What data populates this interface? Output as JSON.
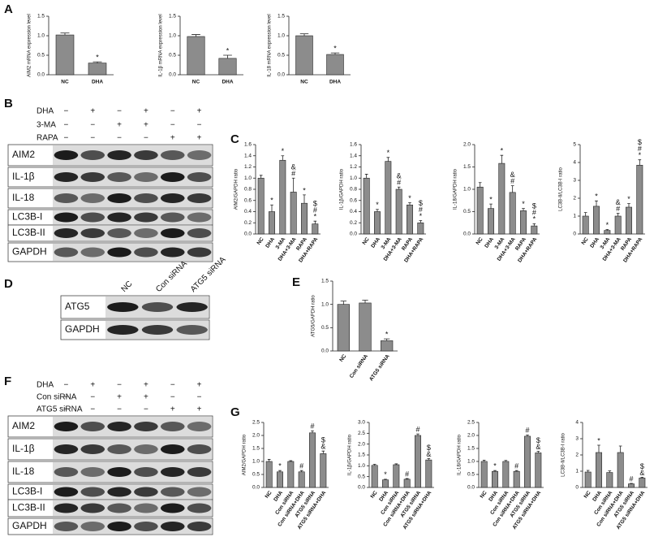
{
  "panel_labels": [
    "A",
    "B",
    "C",
    "D",
    "E",
    "F",
    "G"
  ],
  "blots": [
    {
      "conditions": [
        {
          "name": "DHA",
          "signs": [
            "−",
            "+",
            "−",
            "+",
            "−",
            "+"
          ]
        },
        {
          "name": "3-MA",
          "signs": [
            "−",
            "−",
            "+",
            "+",
            "−",
            "−"
          ]
        },
        {
          "name": "RAPA",
          "signs": [
            "−",
            "−",
            "−",
            "−",
            "+",
            "+"
          ]
        }
      ],
      "bands": [
        "AIM2",
        "IL-1β",
        "IL-18",
        "LC3B-I",
        "LC3B-II",
        "GAPDH"
      ]
    },
    {
      "lanes": [
        "NC",
        "Con siRNA",
        "ATG5 siRNA"
      ],
      "bands": [
        "ATG5",
        "GAPDH"
      ]
    },
    {
      "conditions": [
        {
          "name": "DHA",
          "signs": [
            "−",
            "+",
            "−",
            "+",
            "−",
            "+"
          ]
        },
        {
          "name": "Con siRNA",
          "signs": [
            "−",
            "−",
            "+",
            "+",
            "−",
            "−"
          ]
        },
        {
          "name": "ATG5 siRNA",
          "signs": [
            "−",
            "−",
            "−",
            "−",
            "+",
            "+"
          ]
        }
      ],
      "bands": [
        "AIM2",
        "IL-1β",
        "IL-18",
        "LC3B-I",
        "LC3B-II",
        "GAPDH"
      ]
    }
  ],
  "chart_data": [
    {
      "type": "bar",
      "y_label": "AIM2 mRNA expression level",
      "categories": [
        "NC",
        "DHA"
      ],
      "values": [
        1.02,
        0.3
      ],
      "errors": [
        0.05,
        0.03
      ],
      "annotations": [
        null,
        [
          "*"
        ]
      ],
      "color": "#8c8c8c",
      "ylim": [
        0,
        1.5
      ],
      "yticks": [
        {
          "value": 0,
          "label": "0.0"
        },
        0.5,
        {
          "value": 1,
          "label": "1.0"
        },
        1.5
      ]
    },
    {
      "type": "bar",
      "y_label": "IL-1β mRNA expression level",
      "categories": [
        "NC",
        "DHA"
      ],
      "values": [
        0.98,
        0.42
      ],
      "errors": [
        0.05,
        0.08
      ],
      "annotations": [
        null,
        [
          "*"
        ]
      ],
      "color": "#8c8c8c",
      "ylim": [
        0,
        1.5
      ],
      "yticks": [
        {
          "value": 0,
          "label": "0.0"
        },
        0.5,
        {
          "value": 1,
          "label": "1.0"
        },
        1.5
      ]
    },
    {
      "type": "bar",
      "y_label": "IL-18 mRNA expression level",
      "categories": [
        "NC",
        "DHA"
      ],
      "values": [
        1.0,
        0.52
      ],
      "errors": [
        0.05,
        0.04
      ],
      "annotations": [
        null,
        [
          "*"
        ]
      ],
      "color": "#8c8c8c",
      "ylim": [
        0,
        1.5
      ],
      "yticks": [
        {
          "value": 0,
          "label": "0.0"
        },
        0.5,
        {
          "value": 1,
          "label": "1.0"
        },
        1.5
      ]
    },
    {
      "type": "bar",
      "y_label": "AIM2/GAPDH ratio",
      "categories": [
        "NC",
        "DHA",
        "3-MA",
        "DHA+3-MA",
        "RAPA",
        "DHA+RAPA"
      ],
      "values": [
        1.0,
        0.4,
        1.32,
        0.75,
        0.55,
        0.18
      ],
      "errors": [
        0.05,
        0.12,
        0.08,
        0.25,
        0.15,
        0.05
      ],
      "annotations": [
        null,
        [
          "*"
        ],
        [
          "*"
        ],
        [
          "&",
          "#"
        ],
        [
          "*"
        ],
        [
          "$",
          "#",
          "*"
        ]
      ],
      "color": "#8c8c8c",
      "ylim": [
        0,
        1.6
      ],
      "yticks": [
        {
          "value": 0,
          "label": "0.0"
        },
        0.2,
        0.4,
        0.6,
        0.8,
        {
          "value": 1,
          "label": "1.0"
        },
        1.2,
        1.4,
        1.6
      ]
    },
    {
      "type": "bar",
      "y_label": "IL-1β/GAPDH ratio",
      "categories": [
        "NC",
        "DHA",
        "3-MA",
        "DHA+3-MA",
        "RAPA",
        "DHA+RAPA"
      ],
      "values": [
        1.0,
        0.4,
        1.3,
        0.8,
        0.52,
        0.2
      ],
      "errors": [
        0.07,
        0.04,
        0.07,
        0.04,
        0.04,
        0.04
      ],
      "annotations": [
        null,
        [
          "*"
        ],
        [
          "*"
        ],
        [
          "&",
          "#"
        ],
        [
          "*"
        ],
        [
          "$",
          "#",
          "*"
        ]
      ],
      "color": "#8c8c8c",
      "ylim": [
        0,
        1.6
      ],
      "yticks": [
        {
          "value": 0,
          "label": "0.0"
        },
        0.2,
        0.4,
        0.6,
        0.8,
        {
          "value": 1,
          "label": "1.0"
        },
        1.2,
        1.4,
        1.6
      ]
    },
    {
      "type": "bar",
      "y_label": "IL-18/GAPDH ratio",
      "categories": [
        "NC",
        "DHA",
        "3-MA",
        "DHA+3-MA",
        "RAPA",
        "DHA+RAPA"
      ],
      "values": [
        1.05,
        0.57,
        1.58,
        0.93,
        0.52,
        0.18
      ],
      "errors": [
        0.1,
        0.1,
        0.18,
        0.15,
        0.05,
        0.05
      ],
      "annotations": [
        null,
        [
          "*"
        ],
        [
          "*"
        ],
        [
          "&",
          "#"
        ],
        [
          "*"
        ],
        [
          "$",
          "#",
          "*"
        ]
      ],
      "color": "#8c8c8c",
      "ylim": [
        0,
        2
      ],
      "yticks": [
        {
          "value": 0,
          "label": "0.0"
        },
        0.5,
        {
          "value": 1,
          "label": "1.0"
        },
        1.5,
        {
          "value": 2,
          "label": "2.0"
        }
      ]
    },
    {
      "type": "bar",
      "y_label": "LC3B-Ⅱ/LC3B-Ⅰ ratio",
      "categories": [
        "NC",
        "DHA",
        "3-MA",
        "DHA+3-MA",
        "RAPA",
        "DHA+RAPA"
      ],
      "values": [
        1.0,
        1.55,
        0.2,
        1.0,
        1.5,
        3.85
      ],
      "errors": [
        0.2,
        0.3,
        0.05,
        0.15,
        0.2,
        0.3
      ],
      "annotations": [
        null,
        [
          "*"
        ],
        [
          "*"
        ],
        [
          "&",
          "#"
        ],
        [
          "*"
        ],
        [
          "$",
          "#",
          "*"
        ]
      ],
      "color": "#8c8c8c",
      "ylim": [
        0,
        5
      ],
      "yticks": [
        0,
        1,
        2,
        3,
        4,
        5
      ]
    },
    {
      "type": "bar",
      "y_label": "ATG5/GAPDH ratio",
      "categories": [
        "NC",
        "Con siRNA",
        "ATG5 siRNA"
      ],
      "values": [
        1.0,
        1.03,
        0.22
      ],
      "errors": [
        0.07,
        0.06,
        0.04
      ],
      "annotations": [
        null,
        null,
        [
          "*"
        ]
      ],
      "color": "#8c8c8c",
      "ylim": [
        0,
        1.5
      ],
      "yticks": [
        {
          "value": 0,
          "label": "0.0"
        },
        0.5,
        {
          "value": 1,
          "label": "1.0"
        },
        1.5
      ]
    },
    {
      "type": "bar",
      "y_label": "AIM2/GAPDH ratio",
      "categories": [
        "NC",
        "DHA",
        "Con siRNA",
        "Con siRNA+DHA",
        "ATG5 siRNA",
        "ATG5 siRNA+DHA"
      ],
      "values": [
        1.0,
        0.6,
        1.0,
        0.6,
        2.1,
        1.3
      ],
      "errors": [
        0.08,
        0.05,
        0.03,
        0.05,
        0.08,
        0.1
      ],
      "annotations": [
        null,
        [
          "*"
        ],
        null,
        [
          "#"
        ],
        [
          "#"
        ],
        [
          "$",
          "&"
        ]
      ],
      "color": "#8c8c8c",
      "ylim": [
        0,
        2.5
      ],
      "yticks": [
        {
          "value": 0,
          "label": "0.0"
        },
        0.5,
        {
          "value": 1,
          "label": "1.0"
        },
        1.5,
        {
          "value": 2,
          "label": "2.0"
        },
        2.5
      ]
    },
    {
      "type": "bar",
      "y_label": "IL-1β/GAPDH ratio",
      "categories": [
        "NC",
        "DHA",
        "Con siRNA",
        "Con siRNA+DHA",
        "ATG5 siRNA",
        "ATG5 siRNA+DHA"
      ],
      "values": [
        1.02,
        0.35,
        1.05,
        0.38,
        2.4,
        1.27
      ],
      "errors": [
        0.05,
        0.03,
        0.04,
        0.03,
        0.07,
        0.06
      ],
      "annotations": [
        null,
        [
          "*"
        ],
        null,
        [
          "#"
        ],
        [
          "#"
        ],
        [
          "$",
          "&"
        ]
      ],
      "color": "#8c8c8c",
      "ylim": [
        0,
        3
      ],
      "yticks": [
        {
          "value": 0,
          "label": "0.0"
        },
        0.5,
        {
          "value": 1,
          "label": "1.0"
        },
        1.5,
        {
          "value": 2,
          "label": "2.0"
        },
        2.5,
        {
          "value": 3,
          "label": "3.0"
        }
      ]
    },
    {
      "type": "bar",
      "y_label": "IL-18/GAPDH ratio",
      "categories": [
        "NC",
        "DHA",
        "Con siRNA",
        "Con siRNA+DHA",
        "ATG5 siRNA",
        "ATG5 siRNA+DHA"
      ],
      "values": [
        1.0,
        0.62,
        1.0,
        0.62,
        1.97,
        1.33
      ],
      "errors": [
        0.05,
        0.03,
        0.04,
        0.03,
        0.05,
        0.06
      ],
      "annotations": [
        null,
        [
          "*"
        ],
        null,
        [
          "#"
        ],
        [
          "#"
        ],
        [
          "$",
          "&"
        ]
      ],
      "color": "#8c8c8c",
      "ylim": [
        0,
        2.5
      ],
      "yticks": [
        {
          "value": 0,
          "label": "0.0"
        },
        0.5,
        {
          "value": 1,
          "label": "1.0"
        },
        1.5,
        {
          "value": 2,
          "label": "2.0"
        },
        2.5
      ]
    },
    {
      "type": "bar",
      "y_label": "LC3B-Ⅱ/LC3B-Ⅰ ratio",
      "categories": [
        "NC",
        "DHA",
        "Con siRNA",
        "Con siRNA+DHA",
        "ATG5 siRNA",
        "ATG5 siRNA+DHA"
      ],
      "values": [
        0.95,
        2.15,
        0.92,
        2.15,
        0.22,
        0.58
      ],
      "errors": [
        0.1,
        0.45,
        0.1,
        0.4,
        0.03,
        0.05
      ],
      "annotations": [
        null,
        [
          "*"
        ],
        null,
        null,
        [
          "#"
        ],
        [
          "$",
          "&"
        ]
      ],
      "color": "#8c8c8c",
      "ylim": [
        0,
        4
      ],
      "yticks": [
        0,
        1,
        2,
        3,
        4
      ]
    }
  ]
}
